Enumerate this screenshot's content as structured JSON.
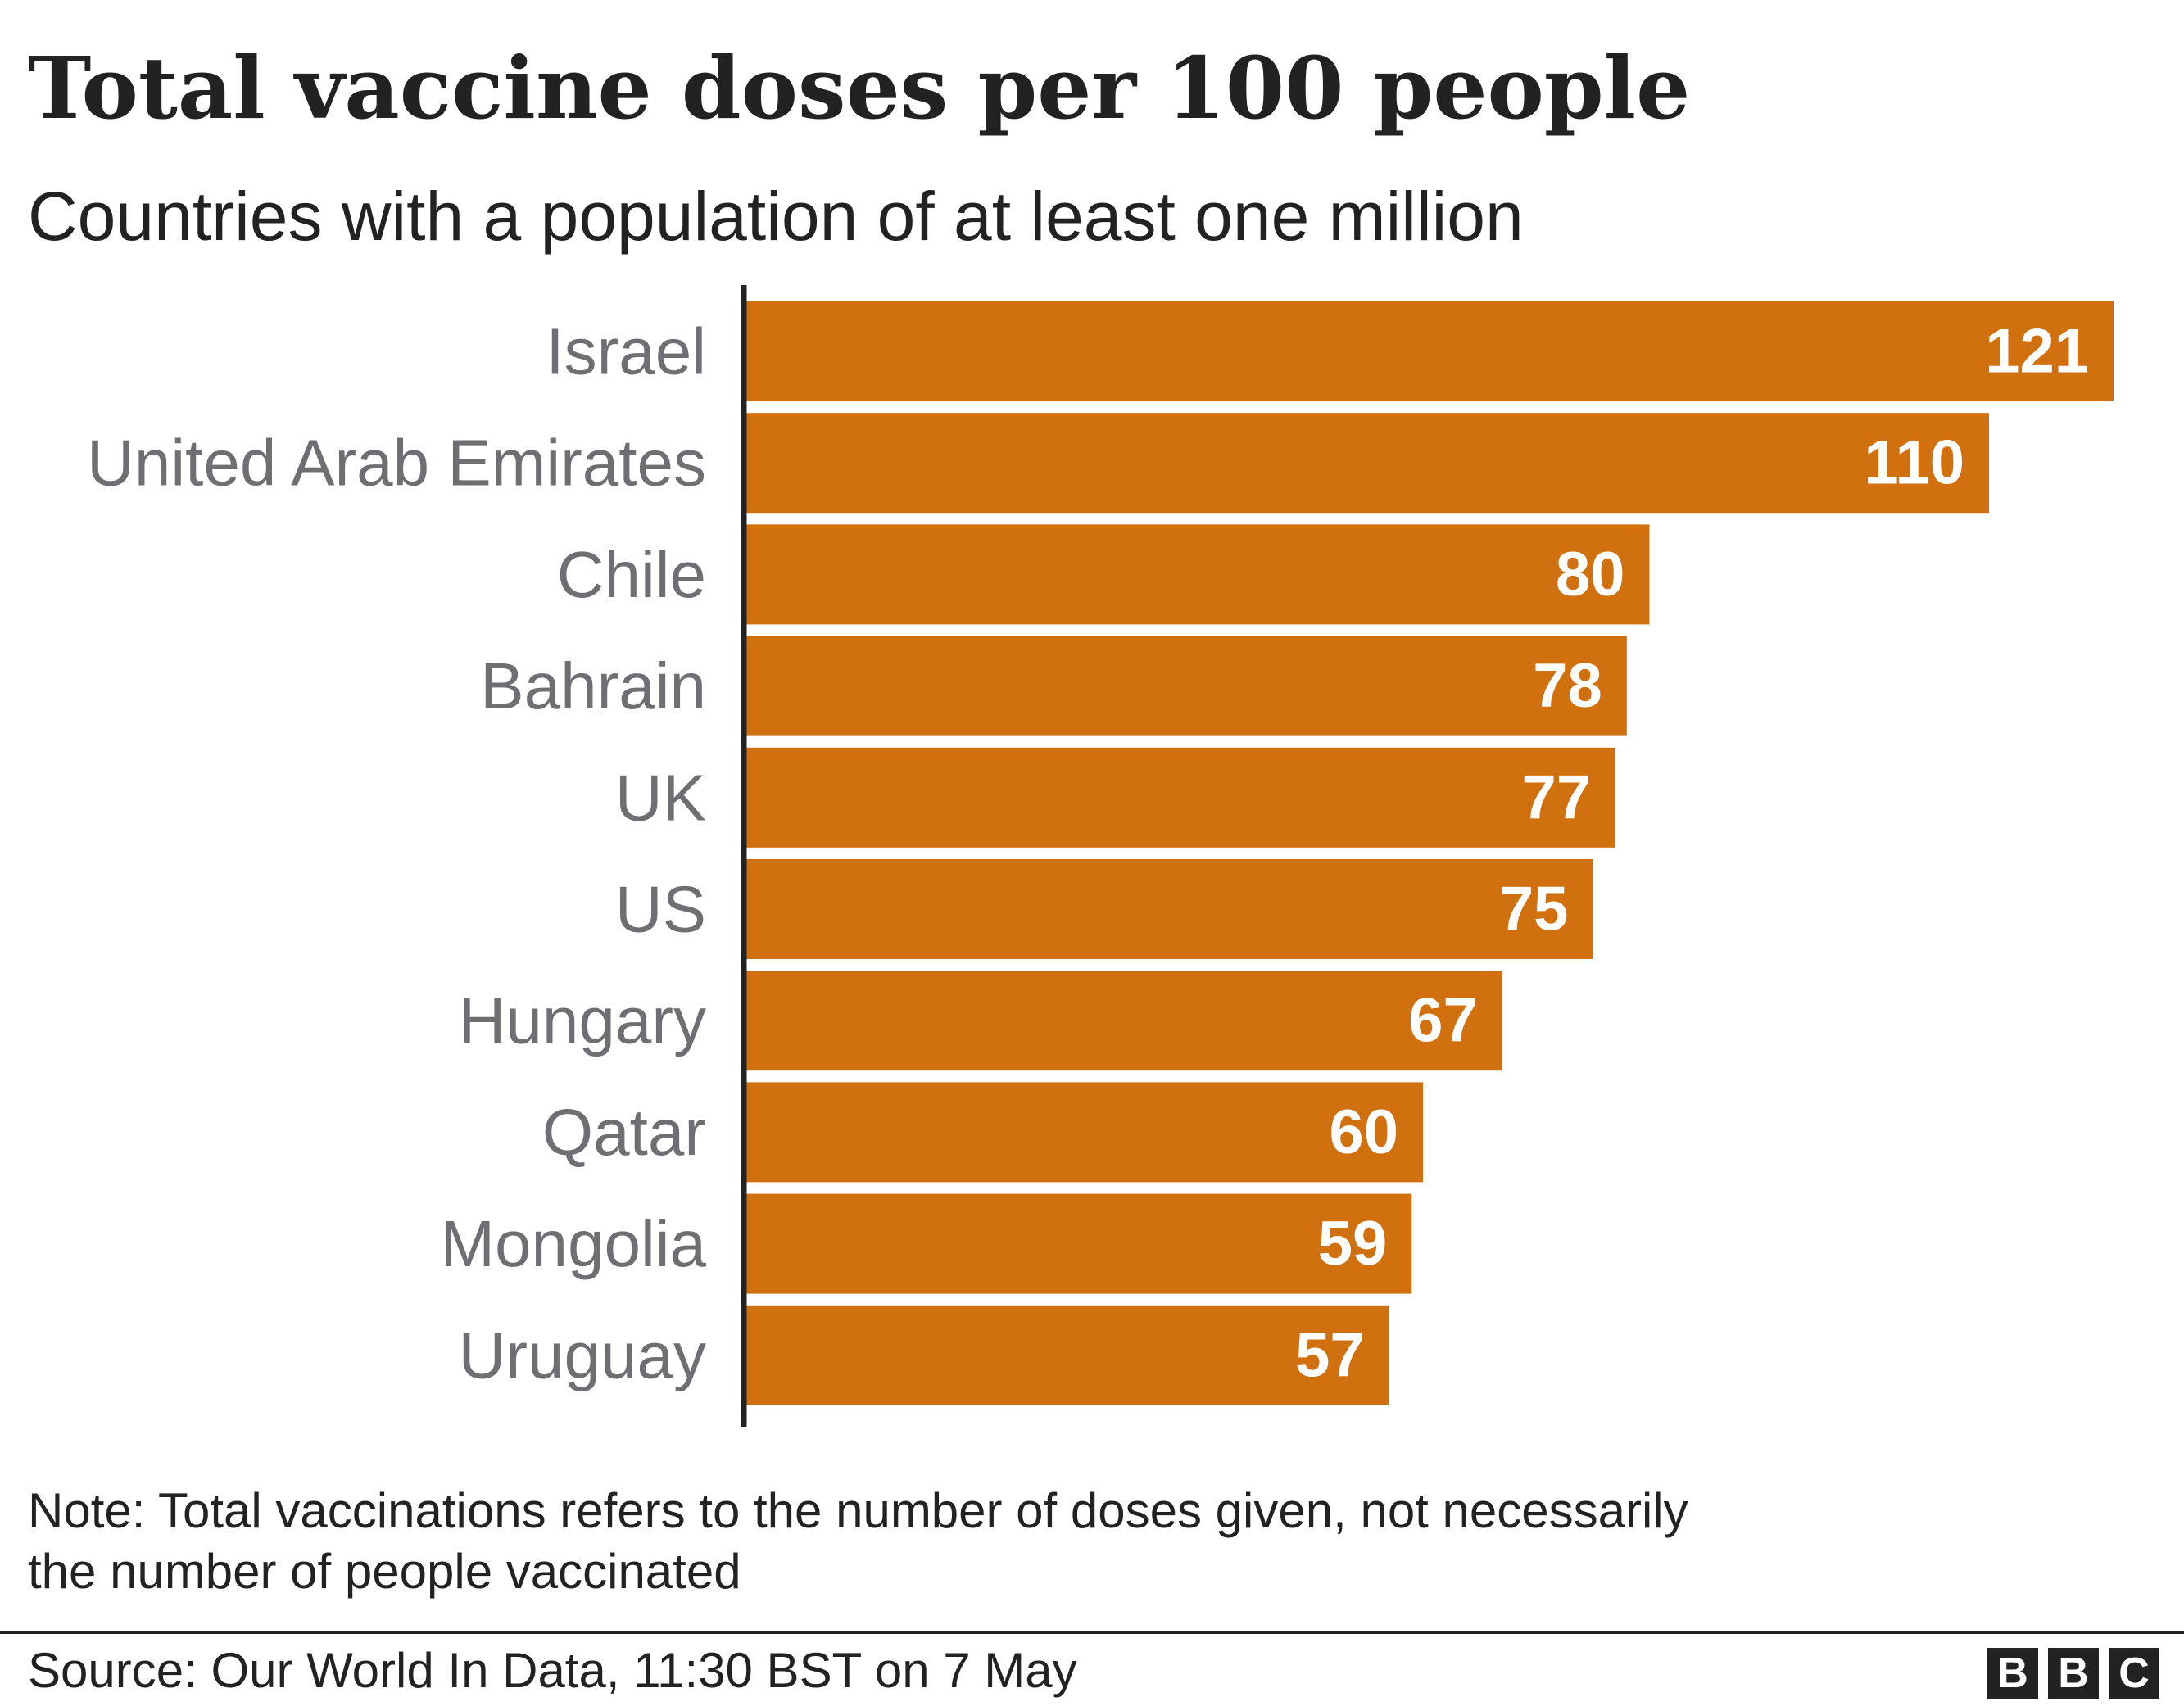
{
  "chart_data": {
    "type": "bar",
    "orientation": "horizontal",
    "title": "Total vaccine doses per 100 people",
    "subtitle": "Countries with a population of at least one million",
    "categories": [
      "Israel",
      "United Arab Emirates",
      "Chile",
      "Bahrain",
      "UK",
      "US",
      "Hungary",
      "Qatar",
      "Mongolia",
      "Uruguay"
    ],
    "values": [
      121,
      110,
      80,
      78,
      77,
      75,
      67,
      60,
      59,
      57
    ],
    "data_labels": [
      "121",
      "110",
      "80",
      "78",
      "77",
      "75",
      "67",
      "60",
      "59",
      "57"
    ],
    "xlim": [
      0,
      121
    ],
    "grid": false,
    "legend": "none",
    "colors": {
      "bar": "#d1700e",
      "axis": "#222222",
      "category_label": "#6e6e73",
      "value_label": "#ffffff"
    }
  },
  "note": {
    "line1": "Note: Total vaccinations refers to the number of doses given, not necessarily",
    "line2": "the number of people vaccinated"
  },
  "source": "Source: Our World In Data, 11:30 BST on 7 May",
  "logo": {
    "letters": [
      "B",
      "B",
      "C"
    ]
  }
}
